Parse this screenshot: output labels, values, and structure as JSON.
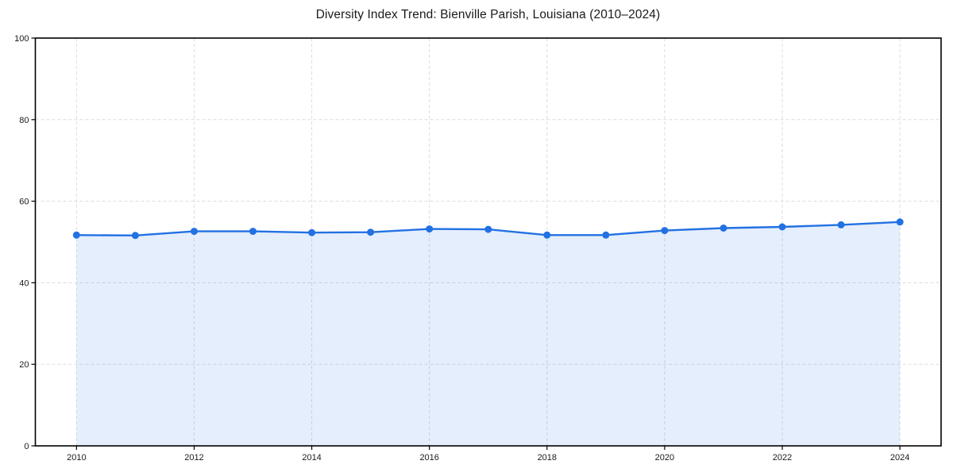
{
  "chart": {
    "title": "Diversity Index Trend: Bienville Parish, Louisiana (2010–2024)"
  },
  "chart_data": {
    "type": "area",
    "title": "Diversity Index Trend: Bienville Parish, Louisiana (2010–2024)",
    "xlabel": "",
    "ylabel": "",
    "x": [
      2010,
      2011,
      2012,
      2013,
      2014,
      2015,
      2016,
      2017,
      2018,
      2019,
      2020,
      2021,
      2022,
      2023,
      2024
    ],
    "series": [
      {
        "name": "Diversity Index",
        "values": [
          51.7,
          51.6,
          52.6,
          52.6,
          52.3,
          52.4,
          53.2,
          53.1,
          51.7,
          51.7,
          52.8,
          53.4,
          53.7,
          54.2,
          54.9
        ]
      }
    ],
    "xlim": [
      2009.3,
      2024.7
    ],
    "ylim": [
      0,
      100
    ],
    "xticks": [
      2010,
      2012,
      2014,
      2016,
      2018,
      2020,
      2022,
      2024
    ],
    "yticks": [
      0,
      20,
      40,
      60,
      80,
      100
    ],
    "grid": true,
    "grid_style": "dashed",
    "legend": false,
    "colors": {
      "line": "#2271e3",
      "marker": "#2271e3",
      "fill": "rgba(34, 113, 227, 0.12)",
      "grid": "#dcdcdc",
      "spine": "#000000",
      "tick_label": "#1a1a1a",
      "title": "#1a1a1a",
      "background": "#ffffff"
    }
  }
}
